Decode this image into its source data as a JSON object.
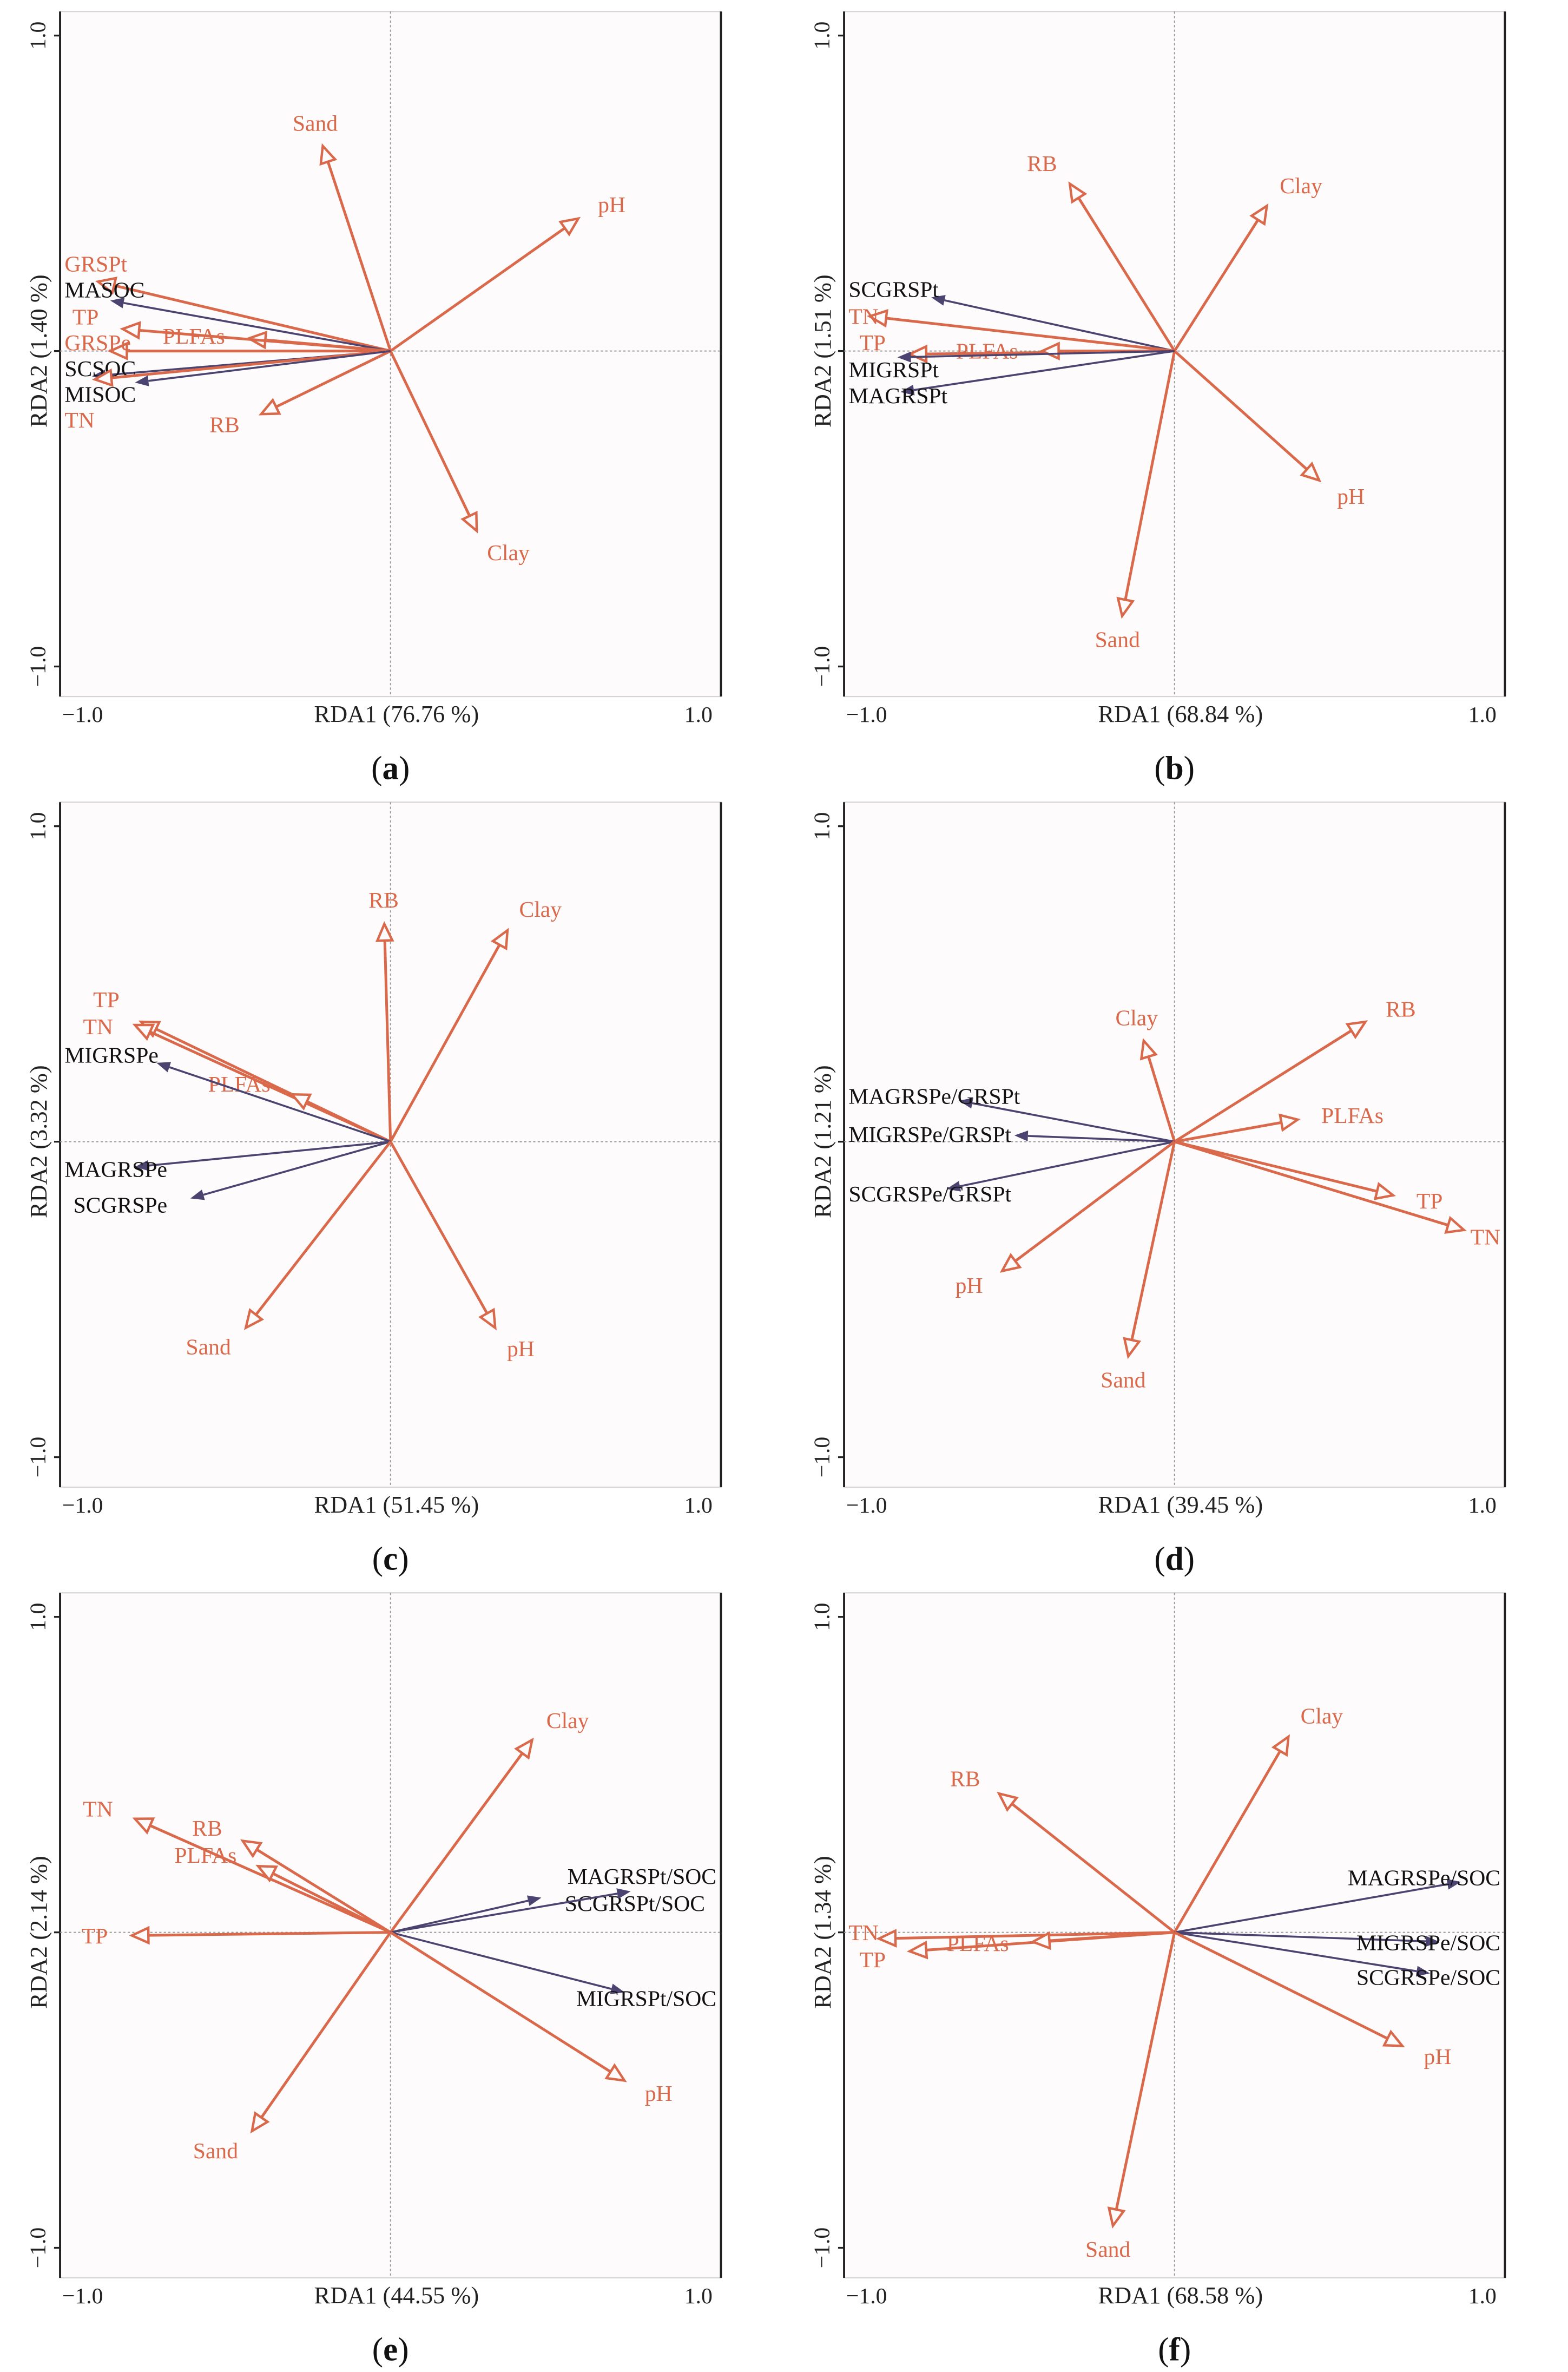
{
  "colors": {
    "environment": "#d9694a",
    "response": "#4b4470",
    "axis": "#222222",
    "grid": "#999999"
  },
  "chart_data": [
    {
      "type": "biplot",
      "panel": "a",
      "xlabel": "RDA1 (76.76 %)",
      "ylabel": "RDA2 (1.40 %)",
      "xlim": [
        -1,
        1
      ],
      "ylim": [
        -1,
        1
      ],
      "xticks": [
        "−1.0",
        "1.0"
      ],
      "yticks": [
        "1.0",
        "−1.0"
      ],
      "vectors": [
        {
          "name": "Sand",
          "group": "environment",
          "x": -0.22,
          "y": 0.65
        },
        {
          "name": "pH",
          "group": "environment",
          "x": 0.61,
          "y": 0.42
        },
        {
          "name": "Clay",
          "group": "environment",
          "x": 0.28,
          "y": -0.57
        },
        {
          "name": "RB",
          "group": "environment",
          "x": -0.42,
          "y": -0.2
        },
        {
          "name": "GRSPt",
          "group": "environment",
          "x": -0.95,
          "y": 0.22
        },
        {
          "name": "MASOC",
          "group": "response",
          "x": -0.91,
          "y": 0.16
        },
        {
          "name": "PLFAs",
          "group": "environment",
          "x": -0.46,
          "y": 0.04
        },
        {
          "name": "TP",
          "group": "environment",
          "x": -0.87,
          "y": 0.07
        },
        {
          "name": "GRSPe",
          "group": "environment",
          "x": -0.91,
          "y": 0.0
        },
        {
          "name": "SCSOC",
          "group": "response",
          "x": -0.97,
          "y": -0.08
        },
        {
          "name": "TN",
          "group": "environment",
          "x": -0.96,
          "y": -0.09
        },
        {
          "name": "MISOC",
          "group": "response",
          "x": -0.83,
          "y": -0.1
        }
      ]
    },
    {
      "type": "biplot",
      "panel": "b",
      "xlabel": "RDA1 (68.84 %)",
      "ylabel": "RDA2 (1.51 %)",
      "xlim": [
        -1,
        1
      ],
      "ylim": [
        -1,
        1
      ],
      "xticks": [
        "−1.0",
        "1.0"
      ],
      "yticks": [
        "1.0",
        "−1.0"
      ],
      "vectors": [
        {
          "name": "RB",
          "group": "environment",
          "x": -0.34,
          "y": 0.53
        },
        {
          "name": "Clay",
          "group": "environment",
          "x": 0.3,
          "y": 0.46
        },
        {
          "name": "pH",
          "group": "environment",
          "x": 0.47,
          "y": -0.41
        },
        {
          "name": "Sand",
          "group": "environment",
          "x": -0.17,
          "y": -0.84
        },
        {
          "name": "SCGRSPt",
          "group": "response",
          "x": -0.79,
          "y": 0.17
        },
        {
          "name": "TN",
          "group": "environment",
          "x": -0.99,
          "y": 0.11
        },
        {
          "name": "TP",
          "group": "environment",
          "x": -0.86,
          "y": -0.01
        },
        {
          "name": "PLFAs",
          "group": "environment",
          "x": -0.43,
          "y": 0.0
        },
        {
          "name": "MIGRSPt",
          "group": "response",
          "x": -0.9,
          "y": -0.02
        },
        {
          "name": "MAGRSPt",
          "group": "response",
          "x": -0.89,
          "y": -0.13
        }
      ]
    },
    {
      "type": "biplot",
      "panel": "c",
      "xlabel": "RDA1 (51.45 %)",
      "ylabel": "RDA2 (3.32 %)",
      "xlim": [
        -1,
        1
      ],
      "ylim": [
        -1,
        1
      ],
      "xticks": [
        "−1.0",
        "1.0"
      ],
      "yticks": [
        "1.0",
        "−1.0"
      ],
      "vectors": [
        {
          "name": "RB",
          "group": "environment",
          "x": -0.02,
          "y": 0.69
        },
        {
          "name": "Clay",
          "group": "environment",
          "x": 0.38,
          "y": 0.67
        },
        {
          "name": "TP",
          "group": "environment",
          "x": -0.81,
          "y": 0.38
        },
        {
          "name": "TN",
          "group": "environment",
          "x": -0.83,
          "y": 0.37
        },
        {
          "name": "PLFAs",
          "group": "environment",
          "x": -0.32,
          "y": 0.15
        },
        {
          "name": "MIGRSPe",
          "group": "response",
          "x": -0.76,
          "y": 0.25
        },
        {
          "name": "MAGRSPe",
          "group": "response",
          "x": -0.83,
          "y": -0.08
        },
        {
          "name": "SCGRSPe",
          "group": "response",
          "x": -0.65,
          "y": -0.18
        },
        {
          "name": "Sand",
          "group": "environment",
          "x": -0.47,
          "y": -0.59
        },
        {
          "name": "pH",
          "group": "environment",
          "x": 0.34,
          "y": -0.59
        }
      ]
    },
    {
      "type": "biplot",
      "panel": "d",
      "xlabel": "RDA1 (39.45 %)",
      "ylabel": "RDA2 (1.21 %)",
      "xlim": [
        -1,
        1
      ],
      "ylim": [
        -1,
        1
      ],
      "xticks": [
        "−1.0",
        "1.0"
      ],
      "yticks": [
        "1.0",
        "−1.0"
      ],
      "vectors": [
        {
          "name": "Clay",
          "group": "environment",
          "x": -0.1,
          "y": 0.32
        },
        {
          "name": "RB",
          "group": "environment",
          "x": 0.62,
          "y": 0.38
        },
        {
          "name": "PLFAs",
          "group": "environment",
          "x": 0.4,
          "y": 0.07
        },
        {
          "name": "TP",
          "group": "environment",
          "x": 0.71,
          "y": -0.17
        },
        {
          "name": "TN",
          "group": "environment",
          "x": 0.94,
          "y": -0.28
        },
        {
          "name": "MAGRSPe/GRSPt",
          "group": "response",
          "x": -0.7,
          "y": 0.13
        },
        {
          "name": "MIGRSPe/GRSPt",
          "group": "response",
          "x": -0.52,
          "y": 0.02
        },
        {
          "name": "SCGRSPe/GRSPt",
          "group": "response",
          "x": -0.74,
          "y": -0.15
        },
        {
          "name": "pH",
          "group": "environment",
          "x": -0.56,
          "y": -0.41
        },
        {
          "name": "Sand",
          "group": "environment",
          "x": -0.15,
          "y": -0.68
        }
      ]
    },
    {
      "type": "biplot",
      "panel": "e",
      "xlabel": "RDA1 (44.55 %)",
      "ylabel": "RDA2 (2.14 %)",
      "xlim": [
        -1,
        1
      ],
      "ylim": [
        -1,
        1
      ],
      "xticks": [
        "−1.0",
        "1.0"
      ],
      "yticks": [
        "1.0",
        "−1.0"
      ],
      "vectors": [
        {
          "name": "Clay",
          "group": "environment",
          "x": 0.46,
          "y": 0.61
        },
        {
          "name": "TN",
          "group": "environment",
          "x": -0.83,
          "y": 0.36
        },
        {
          "name": "RB",
          "group": "environment",
          "x": -0.48,
          "y": 0.29
        },
        {
          "name": "PLFAs",
          "group": "environment",
          "x": -0.43,
          "y": 0.21
        },
        {
          "name": "TP",
          "group": "environment",
          "x": -0.84,
          "y": -0.01
        },
        {
          "name": "SCGRSPt/SOC",
          "group": "response",
          "x": 0.49,
          "y": 0.11
        },
        {
          "name": "MAGRSPt/SOC",
          "group": "response",
          "x": 0.78,
          "y": 0.13
        },
        {
          "name": "MIGRSPt/SOC",
          "group": "response",
          "x": 0.76,
          "y": -0.19
        },
        {
          "name": "pH",
          "group": "environment",
          "x": 0.76,
          "y": -0.47
        },
        {
          "name": "Sand",
          "group": "environment",
          "x": -0.45,
          "y": -0.63
        }
      ]
    },
    {
      "type": "biplot",
      "panel": "f",
      "xlabel": "RDA1 (68.58 %)",
      "ylabel": "RDA2 (1.34 %)",
      "xlim": [
        -1,
        1
      ],
      "ylim": [
        -1,
        1
      ],
      "xticks": [
        "−1.0",
        "1.0"
      ],
      "yticks": [
        "1.0",
        "−1.0"
      ],
      "vectors": [
        {
          "name": "Clay",
          "group": "environment",
          "x": 0.37,
          "y": 0.62
        },
        {
          "name": "RB",
          "group": "environment",
          "x": -0.57,
          "y": 0.44
        },
        {
          "name": "TN",
          "group": "environment",
          "x": -0.96,
          "y": -0.02
        },
        {
          "name": "TP",
          "group": "environment",
          "x": -0.86,
          "y": -0.06
        },
        {
          "name": "PLFAs",
          "group": "environment",
          "x": -0.46,
          "y": -0.03
        },
        {
          "name": "MAGRSPe/SOC",
          "group": "response",
          "x": 0.93,
          "y": 0.16
        },
        {
          "name": "MIGRSPe/SOC",
          "group": "response",
          "x": 0.86,
          "y": -0.03
        },
        {
          "name": "SCGRSPe/SOC",
          "group": "response",
          "x": 0.83,
          "y": -0.13
        },
        {
          "name": "pH",
          "group": "environment",
          "x": 0.74,
          "y": -0.36
        },
        {
          "name": "Sand",
          "group": "environment",
          "x": -0.2,
          "y": -0.93
        }
      ]
    }
  ]
}
